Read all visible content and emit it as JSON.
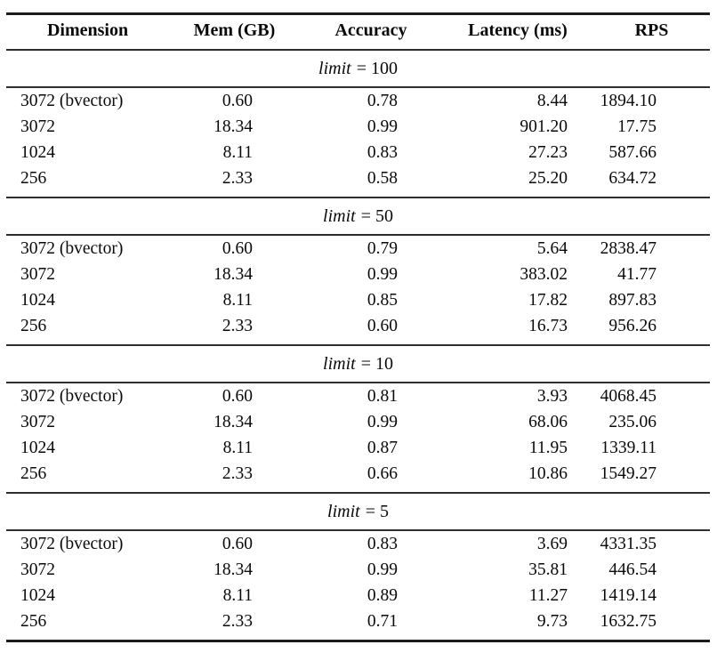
{
  "table": {
    "columns": [
      "Dimension",
      "Mem (GB)",
      "Accuracy",
      "Latency (ms)",
      "RPS"
    ],
    "sections": [
      {
        "label": "limit = 100",
        "label_var": "limit",
        "label_eq": "= 100",
        "rows": [
          [
            "3072 (bvector)",
            "0.60",
            "0.78",
            "8.44",
            "1894.10"
          ],
          [
            "3072",
            "18.34",
            "0.99",
            "901.20",
            "17.75"
          ],
          [
            "1024",
            "8.11",
            "0.83",
            "27.23",
            "587.66"
          ],
          [
            "256",
            "2.33",
            "0.58",
            "25.20",
            "634.72"
          ]
        ]
      },
      {
        "label": "limit = 50",
        "label_var": "limit",
        "label_eq": "= 50",
        "rows": [
          [
            "3072 (bvector)",
            "0.60",
            "0.79",
            "5.64",
            "2838.47"
          ],
          [
            "3072",
            "18.34",
            "0.99",
            "383.02",
            "41.77"
          ],
          [
            "1024",
            "8.11",
            "0.85",
            "17.82",
            "897.83"
          ],
          [
            "256",
            "2.33",
            "0.60",
            "16.73",
            "956.26"
          ]
        ]
      },
      {
        "label": "limit = 10",
        "label_var": "limit",
        "label_eq": "= 10",
        "rows": [
          [
            "3072 (bvector)",
            "0.60",
            "0.81",
            "3.93",
            "4068.45"
          ],
          [
            "3072",
            "18.34",
            "0.99",
            "68.06",
            "235.06"
          ],
          [
            "1024",
            "8.11",
            "0.87",
            "11.95",
            "1339.11"
          ],
          [
            "256",
            "2.33",
            "0.66",
            "10.86",
            "1549.27"
          ]
        ]
      },
      {
        "label": "limit = 5",
        "label_var": "limit",
        "label_eq": "= 5",
        "rows": [
          [
            "3072 (bvector)",
            "0.60",
            "0.83",
            "3.69",
            "4331.35"
          ],
          [
            "3072",
            "18.34",
            "0.99",
            "35.81",
            "446.54"
          ],
          [
            "1024",
            "8.11",
            "0.89",
            "11.27",
            "1419.14"
          ],
          [
            "256",
            "2.33",
            "0.71",
            "9.73",
            "1632.75"
          ]
        ]
      }
    ]
  },
  "chart_data": {
    "type": "table",
    "title": "",
    "columns": [
      "Dimension",
      "Mem (GB)",
      "Accuracy",
      "Latency (ms)",
      "RPS"
    ],
    "groups": [
      {
        "group_label": "limit = 100",
        "rows": [
          {
            "dimension": "3072 (bvector)",
            "mem_gb": 0.6,
            "accuracy": 0.78,
            "latency_ms": 8.44,
            "rps": 1894.1
          },
          {
            "dimension": "3072",
            "mem_gb": 18.34,
            "accuracy": 0.99,
            "latency_ms": 901.2,
            "rps": 17.75
          },
          {
            "dimension": "1024",
            "mem_gb": 8.11,
            "accuracy": 0.83,
            "latency_ms": 27.23,
            "rps": 587.66
          },
          {
            "dimension": "256",
            "mem_gb": 2.33,
            "accuracy": 0.58,
            "latency_ms": 25.2,
            "rps": 634.72
          }
        ]
      },
      {
        "group_label": "limit = 50",
        "rows": [
          {
            "dimension": "3072 (bvector)",
            "mem_gb": 0.6,
            "accuracy": 0.79,
            "latency_ms": 5.64,
            "rps": 2838.47
          },
          {
            "dimension": "3072",
            "mem_gb": 18.34,
            "accuracy": 0.99,
            "latency_ms": 383.02,
            "rps": 41.77
          },
          {
            "dimension": "1024",
            "mem_gb": 8.11,
            "accuracy": 0.85,
            "latency_ms": 17.82,
            "rps": 897.83
          },
          {
            "dimension": "256",
            "mem_gb": 2.33,
            "accuracy": 0.6,
            "latency_ms": 16.73,
            "rps": 956.26
          }
        ]
      },
      {
        "group_label": "limit = 10",
        "rows": [
          {
            "dimension": "3072 (bvector)",
            "mem_gb": 0.6,
            "accuracy": 0.81,
            "latency_ms": 3.93,
            "rps": 4068.45
          },
          {
            "dimension": "3072",
            "mem_gb": 18.34,
            "accuracy": 0.99,
            "latency_ms": 68.06,
            "rps": 235.06
          },
          {
            "dimension": "1024",
            "mem_gb": 8.11,
            "accuracy": 0.87,
            "latency_ms": 11.95,
            "rps": 1339.11
          },
          {
            "dimension": "256",
            "mem_gb": 2.33,
            "accuracy": 0.66,
            "latency_ms": 10.86,
            "rps": 1549.27
          }
        ]
      },
      {
        "group_label": "limit = 5",
        "rows": [
          {
            "dimension": "3072 (bvector)",
            "mem_gb": 0.6,
            "accuracy": 0.83,
            "latency_ms": 3.69,
            "rps": 4331.35
          },
          {
            "dimension": "3072",
            "mem_gb": 18.34,
            "accuracy": 0.99,
            "latency_ms": 35.81,
            "rps": 446.54
          },
          {
            "dimension": "1024",
            "mem_gb": 8.11,
            "accuracy": 0.89,
            "latency_ms": 11.27,
            "rps": 1419.14
          },
          {
            "dimension": "256",
            "mem_gb": 2.33,
            "accuracy": 0.71,
            "latency_ms": 9.73,
            "rps": 1632.75
          }
        ]
      }
    ],
    "colors": {
      "text": "#0a0a0a",
      "rule_heavy": "#1c1c1c",
      "rule_light": "#2e2e2e"
    }
  }
}
